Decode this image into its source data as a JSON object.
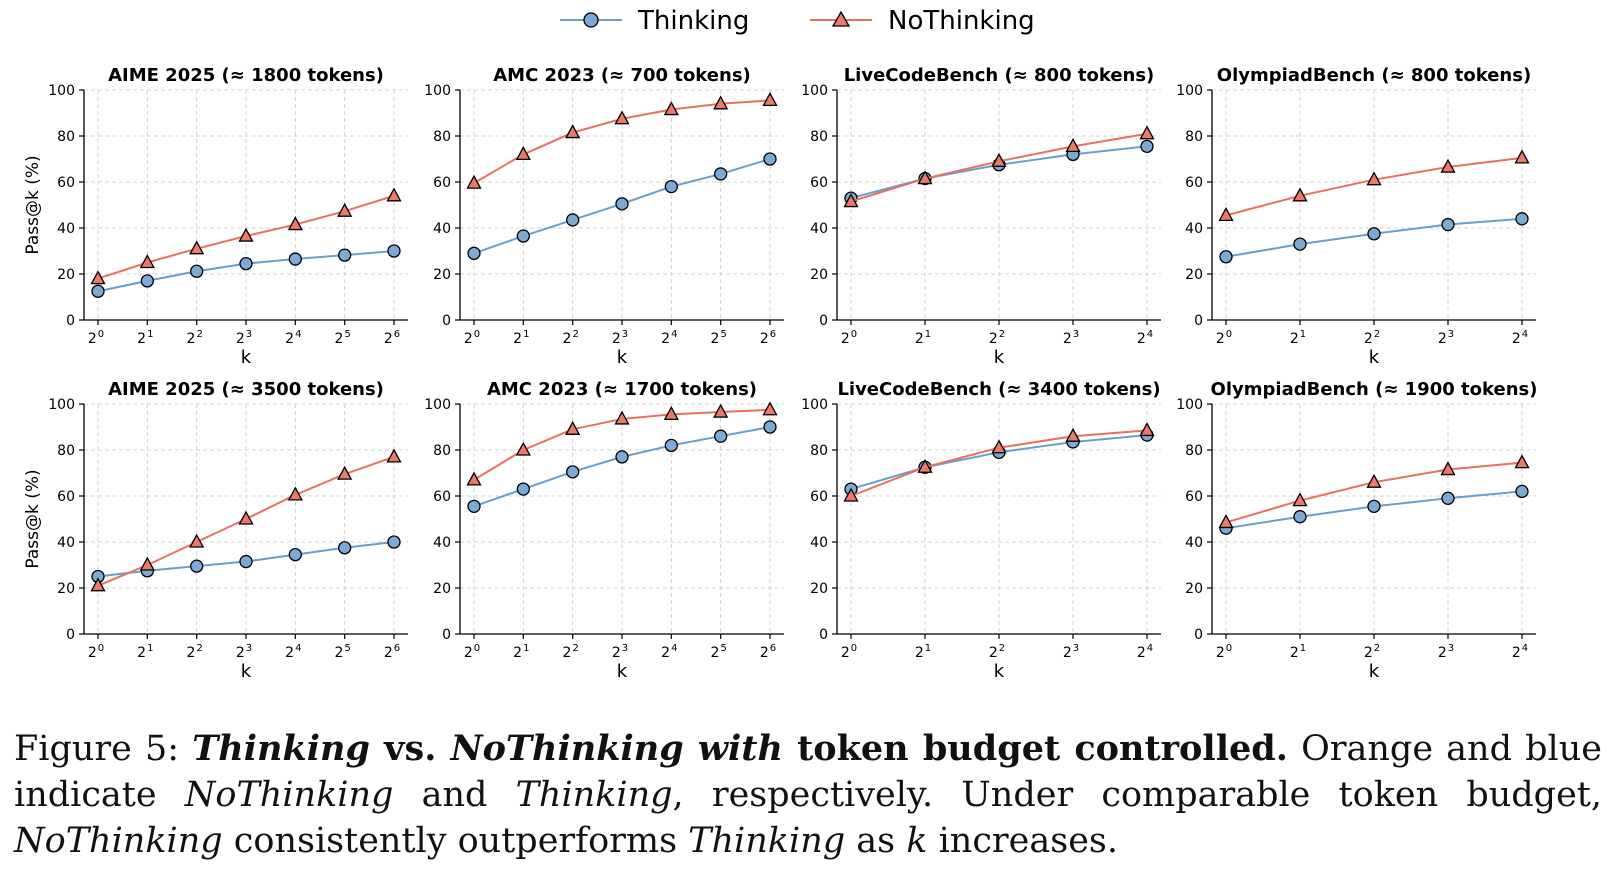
{
  "colors": {
    "thinking": "#6a9fcc",
    "thinking_marker": "#7aaad6",
    "nothinking": "#e8705f",
    "nothinking_marker": "#ec7a69",
    "grid": "#d0d0d0"
  },
  "legend": {
    "thinking_label": "Thinking",
    "nothinking_label": "NoThinking"
  },
  "caption": {
    "prefix": "Figure 5: ",
    "bi1": "Thinking",
    "b1": " vs. ",
    "bi2": "NoThinking with",
    "b2": " token budget controlled.",
    "t1": " Orange and blue indicate ",
    "i1": "NoThinking",
    "t2": " and ",
    "i2": "Thinking",
    "t3": ", respectively. Under comparable token budget, ",
    "i3": "NoThinking",
    "t4": " consistently outperforms ",
    "i4": "Thinking",
    "t5": " as ",
    "i5": "k",
    "t6": " increases."
  },
  "chart_data": [
    {
      "type": "line",
      "title": "AIME 2025 (≈ 1800 tokens)",
      "xlabel": "k",
      "ylabel": "Pass@k (%)",
      "x_exponents": [
        0,
        1,
        2,
        3,
        4,
        5,
        6
      ],
      "ylim": [
        0,
        100
      ],
      "yticks": [
        0,
        20,
        40,
        60,
        80,
        100
      ],
      "series": [
        {
          "name": "Thinking",
          "values": [
            12.5,
            17,
            21.2,
            24.5,
            26.5,
            28.2,
            30
          ]
        },
        {
          "name": "NoThinking",
          "values": [
            18,
            25,
            31,
            36.5,
            41.5,
            47.3,
            54
          ]
        }
      ]
    },
    {
      "type": "line",
      "title": "AMC 2023 (≈ 700 tokens)",
      "xlabel": "k",
      "ylabel": "",
      "x_exponents": [
        0,
        1,
        2,
        3,
        4,
        5,
        6
      ],
      "ylim": [
        0,
        100
      ],
      "yticks": [
        0,
        20,
        40,
        60,
        80,
        100
      ],
      "series": [
        {
          "name": "Thinking",
          "values": [
            29,
            36.5,
            43.5,
            50.5,
            58,
            63.5,
            70
          ]
        },
        {
          "name": "NoThinking",
          "values": [
            59.5,
            72,
            81.5,
            87.5,
            91.5,
            94,
            95.5
          ]
        }
      ]
    },
    {
      "type": "line",
      "title": "LiveCodeBench (≈ 800 tokens)",
      "xlabel": "k",
      "ylabel": "",
      "x_exponents": [
        0,
        1,
        2,
        3,
        4
      ],
      "ylim": [
        0,
        100
      ],
      "yticks": [
        0,
        20,
        40,
        60,
        80,
        100
      ],
      "series": [
        {
          "name": "Thinking",
          "values": [
            53,
            61.5,
            67.5,
            72,
            75.5
          ]
        },
        {
          "name": "NoThinking",
          "values": [
            51.5,
            61.5,
            69,
            75.5,
            81
          ]
        }
      ]
    },
    {
      "type": "line",
      "title": "OlympiadBench (≈ 800 tokens)",
      "xlabel": "k",
      "ylabel": "",
      "x_exponents": [
        0,
        1,
        2,
        3,
        4
      ],
      "ylim": [
        0,
        100
      ],
      "yticks": [
        0,
        20,
        40,
        60,
        80,
        100
      ],
      "series": [
        {
          "name": "Thinking",
          "values": [
            27.5,
            33,
            37.5,
            41.5,
            44
          ]
        },
        {
          "name": "NoThinking",
          "values": [
            45.5,
            54,
            61,
            66.5,
            70.5
          ]
        }
      ]
    },
    {
      "type": "line",
      "title": "AIME 2025 (≈ 3500 tokens)",
      "xlabel": "k",
      "ylabel": "Pass@k (%)",
      "x_exponents": [
        0,
        1,
        2,
        3,
        4,
        5,
        6
      ],
      "ylim": [
        0,
        100
      ],
      "yticks": [
        0,
        20,
        40,
        60,
        80,
        100
      ],
      "series": [
        {
          "name": "Thinking",
          "values": [
            25,
            27.5,
            29.5,
            31.5,
            34.5,
            37.5,
            40
          ]
        },
        {
          "name": "NoThinking",
          "values": [
            21,
            30,
            40,
            50,
            60.5,
            69.5,
            77
          ]
        }
      ]
    },
    {
      "type": "line",
      "title": "AMC 2023 (≈ 1700 tokens)",
      "xlabel": "k",
      "ylabel": "",
      "x_exponents": [
        0,
        1,
        2,
        3,
        4,
        5,
        6
      ],
      "ylim": [
        0,
        100
      ],
      "yticks": [
        0,
        20,
        40,
        60,
        80,
        100
      ],
      "series": [
        {
          "name": "Thinking",
          "values": [
            55.5,
            63,
            70.5,
            77,
            82,
            86,
            90
          ]
        },
        {
          "name": "NoThinking",
          "values": [
            67,
            80,
            89,
            93.5,
            95.5,
            96.5,
            97.5
          ]
        }
      ]
    },
    {
      "type": "line",
      "title": "LiveCodeBench (≈ 3400 tokens)",
      "xlabel": "k",
      "ylabel": "",
      "x_exponents": [
        0,
        1,
        2,
        3,
        4
      ],
      "ylim": [
        0,
        100
      ],
      "yticks": [
        0,
        20,
        40,
        60,
        80,
        100
      ],
      "series": [
        {
          "name": "Thinking",
          "values": [
            63,
            72.5,
            79,
            83.5,
            86.5
          ]
        },
        {
          "name": "NoThinking",
          "values": [
            60,
            72.5,
            81,
            86,
            88.5
          ]
        }
      ]
    },
    {
      "type": "line",
      "title": "OlympiadBench (≈ 1900 tokens)",
      "xlabel": "k",
      "ylabel": "",
      "x_exponents": [
        0,
        1,
        2,
        3,
        4
      ],
      "ylim": [
        0,
        100
      ],
      "yticks": [
        0,
        20,
        40,
        60,
        80,
        100
      ],
      "series": [
        {
          "name": "Thinking",
          "values": [
            46,
            51,
            55.5,
            59,
            62
          ]
        },
        {
          "name": "NoThinking",
          "values": [
            48.5,
            58,
            66,
            71.5,
            74.5
          ]
        }
      ]
    }
  ]
}
